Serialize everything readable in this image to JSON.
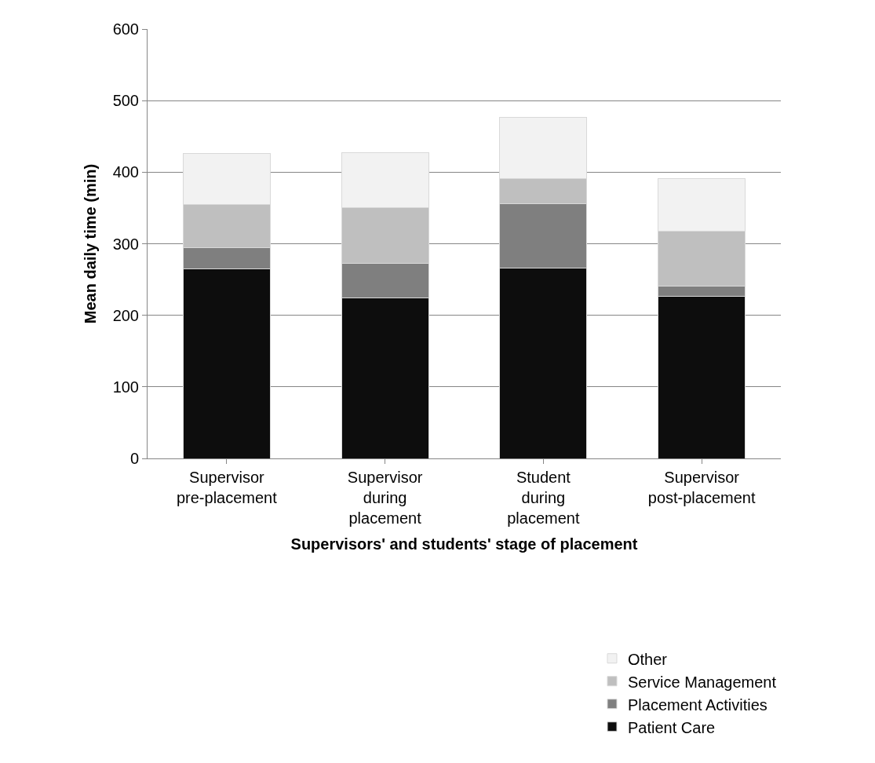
{
  "chart_data": {
    "type": "bar",
    "stacked": true,
    "xlabel": "Supervisors' and students' stage of placement",
    "ylabel": "Mean daily time (min)",
    "categories": [
      "Supervisor pre-placement",
      "Supervisor during placement",
      "Student during placement",
      "Supervisor post-placement"
    ],
    "series": [
      {
        "name": "Patient Care",
        "color": "#0d0d0d",
        "values": [
          265,
          224,
          266,
          227
        ]
      },
      {
        "name": "Placement Activities",
        "color": "#7f7f7f",
        "values": [
          29,
          49,
          90,
          14
        ]
      },
      {
        "name": "Service Management",
        "color": "#bfbfbf",
        "values": [
          61,
          78,
          35,
          77
        ]
      },
      {
        "name": "Other",
        "color": "#f2f2f2",
        "values": [
          71,
          76,
          86,
          73
        ]
      }
    ],
    "ylim": [
      0,
      600
    ],
    "yticks": [
      0,
      100,
      200,
      300,
      400,
      500,
      600
    ],
    "grid": "y",
    "legend": "bottom right"
  }
}
